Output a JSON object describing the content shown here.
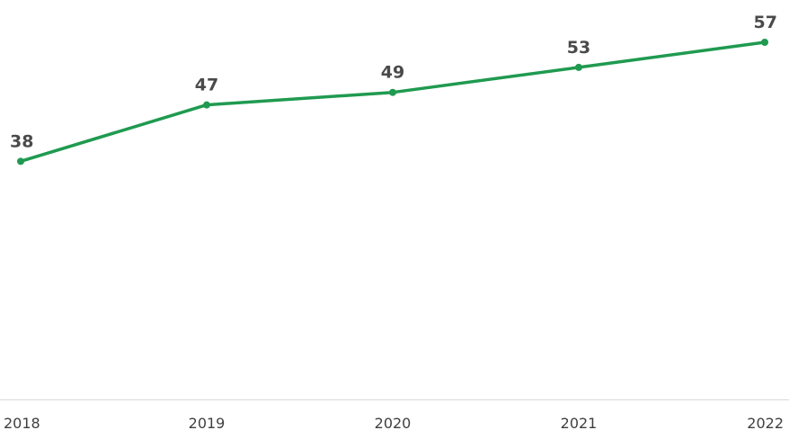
{
  "chart_data": {
    "type": "line",
    "categories": [
      "2018",
      "2019",
      "2020",
      "2021",
      "2022"
    ],
    "series": [
      {
        "values": [
          38,
          47,
          49,
          53,
          57
        ]
      }
    ],
    "title": "",
    "xlabel": "",
    "ylabel": "",
    "ylim": [
      0,
      57
    ],
    "grid": false,
    "legend": "none",
    "colors": {
      "line": "#1f9a50",
      "baseline": "#d9d9d9",
      "data_label": "#4a4a4a",
      "tick_label": "#3f3f3f"
    }
  }
}
